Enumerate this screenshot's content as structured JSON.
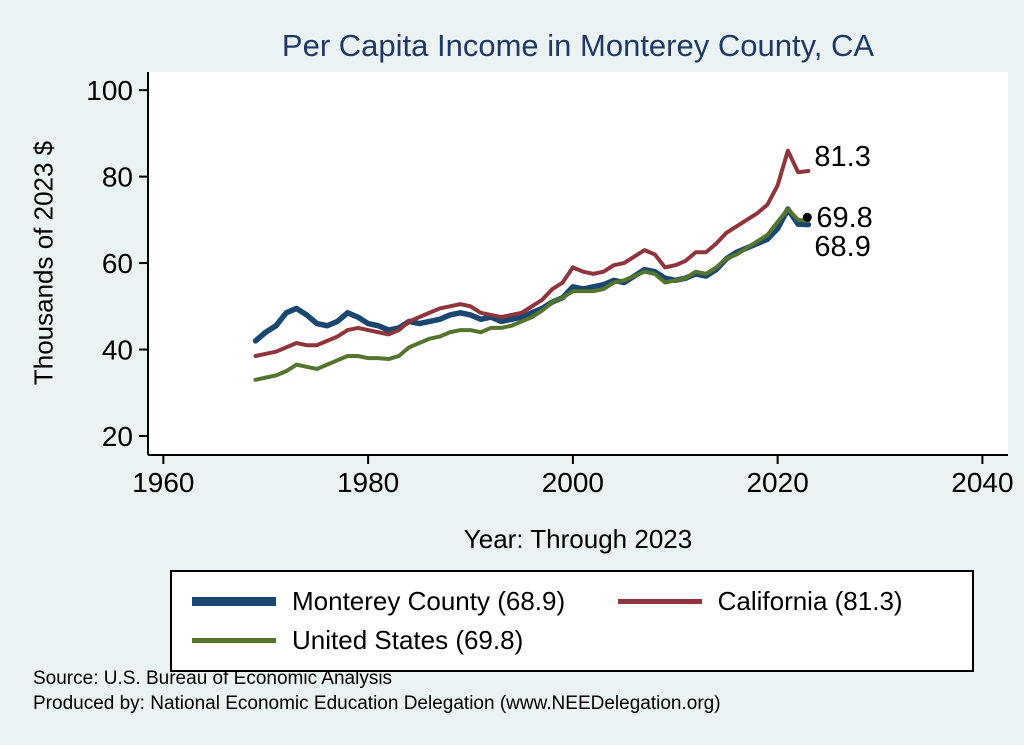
{
  "page": {
    "footer_source": "Source: U.S. Bureau of Economic Analysis",
    "footer_produced": "Produced by: National Economic Education Delegation (www.NEEDelegation.org)"
  },
  "colors": {
    "background": "#eaf2f3",
    "plot_background": "#ffffff",
    "title_text": "#1f3864",
    "axis": "#000000",
    "label_text": "#000000",
    "monterey_county": "#1a476f",
    "california": "#90353b",
    "united_states": "#55752f"
  },
  "chart_data": {
    "type": "line",
    "title": "Per Capita Income in Monterey County, CA",
    "xlabel": "Year: Through 2023",
    "ylabel": "Thousands of 2023 $",
    "xlim": [
      1958.5,
      2042.5
    ],
    "ylim": [
      15.6,
      104.2
    ],
    "xticks": [
      1960,
      1980,
      2000,
      2020,
      2040
    ],
    "yticks": [
      20,
      40,
      60,
      80,
      100
    ],
    "grid": false,
    "legend_position": "bottom",
    "x": [
      1969,
      1970,
      1971,
      1972,
      1973,
      1974,
      1975,
      1976,
      1977,
      1978,
      1979,
      1980,
      1981,
      1982,
      1983,
      1984,
      1985,
      1986,
      1987,
      1988,
      1989,
      1990,
      1991,
      1992,
      1993,
      1994,
      1995,
      1996,
      1997,
      1998,
      1999,
      2000,
      2001,
      2002,
      2003,
      2004,
      2005,
      2006,
      2007,
      2008,
      2009,
      2010,
      2011,
      2012,
      2013,
      2014,
      2015,
      2016,
      2017,
      2018,
      2019,
      2020,
      2021,
      2022,
      2023
    ],
    "series": [
      {
        "name": "Monterey County (68.9)",
        "color": "#1a476f",
        "line_width": 5.5,
        "legend_thickness": 9,
        "values": [
          42.0,
          44.0,
          45.5,
          48.5,
          49.5,
          48.0,
          46.0,
          45.5,
          46.5,
          48.5,
          47.5,
          46.0,
          45.5,
          44.5,
          45.0,
          46.5,
          46.0,
          46.5,
          47.0,
          48.0,
          48.5,
          48.0,
          47.0,
          47.5,
          46.5,
          47.0,
          47.5,
          48.5,
          49.5,
          51.0,
          52.0,
          54.5,
          54.0,
          54.5,
          55.0,
          56.0,
          55.5,
          57.0,
          58.5,
          58.0,
          56.5,
          56.0,
          56.5,
          57.5,
          57.0,
          58.5,
          61.0,
          62.5,
          63.5,
          64.5,
          65.5,
          68.0,
          72.5,
          69.0,
          68.9
        ]
      },
      {
        "name": "California (81.3)",
        "color": "#90353b",
        "line_width": 4,
        "legend_thickness": 5,
        "values": [
          38.5,
          39.0,
          39.5,
          40.5,
          41.5,
          41.0,
          41.0,
          42.0,
          43.0,
          44.5,
          45.0,
          44.5,
          44.0,
          43.5,
          44.5,
          46.5,
          47.5,
          48.5,
          49.5,
          50.0,
          50.5,
          50.0,
          48.5,
          48.0,
          47.5,
          48.0,
          48.5,
          50.0,
          51.5,
          54.0,
          55.5,
          59.0,
          58.0,
          57.5,
          58.0,
          59.5,
          60.0,
          61.5,
          63.0,
          62.0,
          59.0,
          59.5,
          60.5,
          62.5,
          62.5,
          64.5,
          67.0,
          68.5,
          70.0,
          71.5,
          73.5,
          78.0,
          86.0,
          81.0,
          81.3
        ]
      },
      {
        "name": "United States (69.8)",
        "color": "#55752f",
        "line_width": 4,
        "legend_thickness": 5,
        "values": [
          33.0,
          33.5,
          34.0,
          35.0,
          36.5,
          36.0,
          35.5,
          36.5,
          37.5,
          38.5,
          38.5,
          38.0,
          38.0,
          37.8,
          38.5,
          40.5,
          41.5,
          42.5,
          43.0,
          44.0,
          44.5,
          44.5,
          44.0,
          45.0,
          45.0,
          45.5,
          46.5,
          47.5,
          49.0,
          51.0,
          52.0,
          53.5,
          53.5,
          53.5,
          54.0,
          55.5,
          56.0,
          57.0,
          58.0,
          57.5,
          55.5,
          56.0,
          56.5,
          58.0,
          57.5,
          59.0,
          61.0,
          62.0,
          63.5,
          65.0,
          66.5,
          69.5,
          72.5,
          70.0,
          69.8
        ]
      }
    ],
    "end_labels": [
      {
        "text": "81.3",
        "year": 2023.3,
        "value": 84.8,
        "marker": false
      },
      {
        "text": "69.8",
        "year": 2022.9,
        "value": 70.6,
        "marker": true
      },
      {
        "text": "68.9",
        "year": 2023.3,
        "value": 64.0,
        "marker": false
      }
    ]
  }
}
